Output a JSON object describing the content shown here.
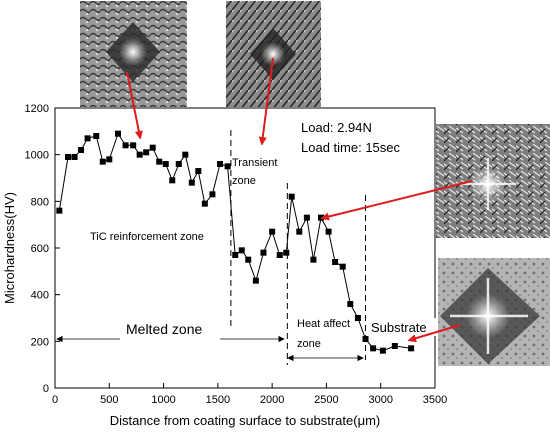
{
  "chart_data": {
    "type": "line",
    "title": "",
    "xlabel": "Distance from coating surface to substrate(μm)",
    "ylabel": "Microhardness(HV)",
    "xlim": [
      0,
      3500
    ],
    "ylim": [
      0,
      1200
    ],
    "xticks": [
      0,
      500,
      1000,
      1500,
      2000,
      2500,
      3000,
      3500
    ],
    "yticks": [
      0,
      200,
      400,
      600,
      800,
      1000,
      1200
    ],
    "grid": false,
    "legend": "none",
    "marker": "square",
    "series": [
      {
        "x": [
          40,
          120,
          180,
          240,
          300,
          380,
          440,
          500,
          580,
          650,
          720,
          780,
          840,
          900,
          960,
          1020,
          1080,
          1140,
          1200,
          1260,
          1320,
          1380,
          1450,
          1520,
          1590,
          1660,
          1720,
          1780,
          1850,
          1920,
          2000,
          2070,
          2130,
          2180,
          2250,
          2320,
          2380,
          2450,
          2520,
          2580,
          2650,
          2720,
          2790,
          2860,
          2930,
          3020,
          3130,
          3280
        ],
        "y": [
          760,
          990,
          990,
          1020,
          1070,
          1080,
          970,
          980,
          1090,
          1040,
          1040,
          1000,
          1010,
          1030,
          970,
          960,
          890,
          960,
          1000,
          880,
          930,
          790,
          830,
          960,
          950,
          570,
          590,
          550,
          460,
          580,
          670,
          570,
          580,
          820,
          670,
          730,
          550,
          730,
          670,
          540,
          520,
          360,
          300,
          210,
          170,
          160,
          180,
          170
        ]
      }
    ],
    "annotations": {
      "load": "Load: 2.94N",
      "load_time": "Load time: 15sec",
      "transient_line1": "Transient",
      "transient_line2": "zone",
      "tic_zone": "TiC reinforcement zone",
      "melted_zone": "Melted zone",
      "heat_line1": "Heat affect",
      "heat_line2": "zone",
      "substrate": "Substrate"
    },
    "boundaries_x": [
      1620,
      2140,
      2860
    ]
  },
  "colors": {
    "line": "#000000",
    "arrow": "#e01b1b"
  }
}
